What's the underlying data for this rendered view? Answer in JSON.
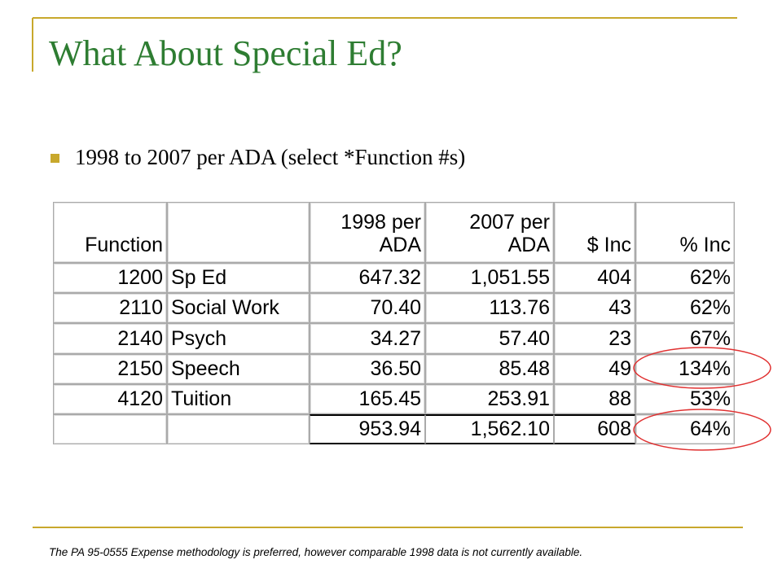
{
  "title": "What About Special Ed?",
  "bullet": "1998 to 2007 per ADA (select *Function #s)",
  "table": {
    "header": [
      "Function",
      "1998 per ADA",
      "2007 per ADA",
      "$ Inc",
      "% Inc"
    ],
    "rows": [
      [
        "1200",
        "Sp Ed",
        "647.32",
        "1,051.55",
        "404",
        "62%"
      ],
      [
        "2110",
        "Social Work",
        "70.40",
        "113.76",
        "43",
        "62%"
      ],
      [
        "2140",
        "Psych",
        "34.27",
        "57.40",
        "23",
        "67%"
      ],
      [
        "2150",
        "Speech",
        "36.50",
        "85.48",
        "49",
        "134%"
      ],
      [
        "4120",
        "Tuition",
        "165.45",
        "253.91",
        "88",
        "53%"
      ]
    ],
    "total": [
      "953.94",
      "1,562.10",
      "608",
      "64%"
    ]
  },
  "footnote": "The PA 95-0555 Expense methodology is preferred, however comparable 1998 data is not currently available."
}
